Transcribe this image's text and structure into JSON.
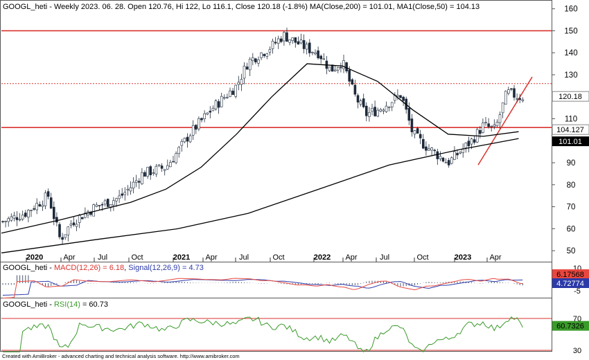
{
  "price_panel": {
    "header": "GOOGL_heti - Weekly 2023. 06. 28. Open 120.76, Hi 122, Lo 116.1, Close 120.18 (-1.8%) MA(Close,200) = 101.01, MA1(Close,50) = 104.13",
    "y_ticks": [
      50,
      60,
      70,
      80,
      90,
      100,
      110,
      120,
      130,
      140,
      150,
      160
    ],
    "ylim": [
      45,
      164
    ],
    "time_labels": [
      "2020",
      "Apr",
      "Jul",
      "Oct",
      "2021",
      "Apr",
      "Jul",
      "Oct",
      "2022",
      "Apr",
      "Jul",
      "Oct",
      "2023",
      "Apr"
    ],
    "time_bold": [
      true,
      false,
      false,
      false,
      true,
      false,
      false,
      false,
      true,
      false,
      false,
      false,
      true,
      false
    ],
    "horizontal_lines": [
      {
        "value": 150,
        "style": "solid"
      },
      {
        "value": 106,
        "style": "solid"
      },
      {
        "value": 126,
        "style": "dotted"
      }
    ],
    "last_price_tag": "120.18",
    "ma50_tag": "104.127",
    "ma200_tag": "101.01"
  },
  "macd_panel": {
    "header_name": "GOOGL_heti - ",
    "macd_label": "MACD(12,26) = 6.18",
    "signal_label": "Signal(12,26,9) = 4.73",
    "y_ticks": [
      "10",
      "5",
      "-5"
    ],
    "macd_tag": "6.17568",
    "signal_tag": "4.72774",
    "colors": {
      "macd": "#e8473f",
      "signal": "#2c3aa8",
      "hist": "#4b5870"
    }
  },
  "rsi_panel": {
    "header_name": "GOOGL_heti - ",
    "rsi_label": "RSI(14)",
    "value_label": " = 60.73",
    "y_ticks": [
      "70",
      "30"
    ],
    "rsi_tag": "60.7326",
    "colors": {
      "rsi": "#3a9a2a",
      "levels": "#d9322e"
    }
  },
  "footer": "Created with AmiBroker - advanced charting and technical analysis software. http://www.amibroker.com",
  "chart_data": {
    "type": "line",
    "title": "GOOGL_heti - Weekly",
    "series": [
      {
        "name": "Close",
        "x": [
          "2019-10",
          "2019-12",
          "2020-02",
          "2020-03",
          "2020-04",
          "2020-06",
          "2020-08",
          "2020-09",
          "2020-10",
          "2020-12",
          "2021-01",
          "2021-02",
          "2021-04",
          "2021-06",
          "2021-07",
          "2021-09",
          "2021-10",
          "2021-11",
          "2021-12",
          "2022-01",
          "2022-02",
          "2022-03",
          "2022-04",
          "2022-05",
          "2022-06",
          "2022-08",
          "2022-09",
          "2022-10",
          "2022-11",
          "2022-12",
          "2023-01",
          "2023-02",
          "2023-03",
          "2023-04",
          "2023-05",
          "2023-06"
        ],
        "values": [
          63,
          67,
          75,
          55,
          63,
          70,
          74,
          79,
          85,
          88,
          95,
          103,
          115,
          125,
          136,
          143,
          148,
          145,
          142,
          140,
          132,
          136,
          121,
          112,
          114,
          121,
          103,
          98,
          94,
          90,
          95,
          100,
          107,
          105,
          122,
          120
        ]
      },
      {
        "name": "MA1(Close,50)",
        "x": [
          "2019-10",
          "2020-03",
          "2020-06",
          "2020-09",
          "2020-12",
          "2021-03",
          "2021-06",
          "2021-09",
          "2021-12",
          "2022-03",
          "2022-06",
          "2022-09",
          "2022-12",
          "2023-03",
          "2023-06"
        ],
        "values": [
          58,
          64,
          68,
          72,
          78,
          88,
          103,
          120,
          135,
          134,
          127,
          114,
          103,
          102,
          104.13
        ]
      },
      {
        "name": "MA(Close,200)",
        "x": [
          "2019-10",
          "2020-06",
          "2021-01",
          "2021-07",
          "2022-01",
          "2022-07",
          "2023-01",
          "2023-06"
        ],
        "values": [
          49,
          55,
          60,
          67,
          78,
          89,
          96,
          101.01
        ]
      }
    ],
    "ylim": [
      45,
      164
    ],
    "horizontal_lines": [
      150,
      106,
      126
    ],
    "indicators": {
      "macd": {
        "last": 6.18,
        "signal_last": 4.73
      },
      "rsi": {
        "period": 14,
        "last": 60.73,
        "levels": [
          70,
          30
        ]
      }
    }
  }
}
